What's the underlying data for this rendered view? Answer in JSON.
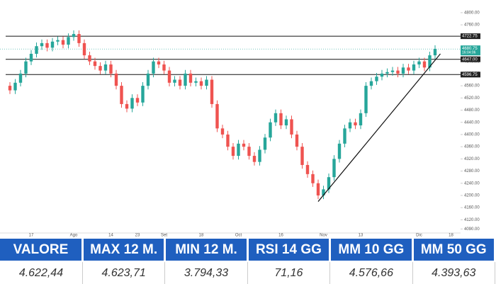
{
  "chart_data": {
    "type": "candlestick",
    "categories": [
      null,
      null,
      null,
      null,
      "17",
      null,
      null,
      null,
      null,
      null,
      null,
      null,
      "Ago",
      null,
      null,
      null,
      null,
      null,
      null,
      "14",
      null,
      null,
      null,
      null,
      "23",
      null,
      null,
      null,
      null,
      "Set",
      null,
      null,
      null,
      null,
      null,
      null,
      "18",
      null,
      null,
      null,
      null,
      null,
      null,
      "Oct",
      null,
      null,
      null,
      null,
      null,
      null,
      null,
      "16",
      null,
      null,
      null,
      null,
      null,
      null,
      null,
      "Nov",
      null,
      null,
      null,
      null,
      null,
      null,
      "13",
      null,
      null,
      null,
      null,
      null,
      null,
      null,
      null,
      null,
      null,
      "Dic",
      null,
      null,
      null,
      null,
      null,
      "18",
      null
    ],
    "opens": [
      4560,
      4545,
      4570,
      4600,
      4640,
      4665,
      4690,
      4700,
      4685,
      4705,
      4710,
      4695,
      4720,
      4730,
      4700,
      4660,
      4640,
      4625,
      4610,
      4630,
      4600,
      4560,
      4500,
      4485,
      4520,
      4505,
      4560,
      4600,
      4640,
      4630,
      4610,
      4570,
      4580,
      4560,
      4600,
      4570,
      4575,
      4560,
      4580,
      4500,
      4420,
      4400,
      4360,
      4330,
      4370,
      4360,
      4330,
      4310,
      4350,
      4390,
      4440,
      4470,
      4430,
      4450,
      4400,
      4360,
      4300,
      4270,
      4240,
      4200,
      4220,
      4260,
      4320,
      4370,
      4420,
      4440,
      4430,
      4470,
      4560,
      4575,
      4590,
      4600,
      4605,
      4610,
      4600,
      4620,
      4610,
      4630,
      4640,
      4620,
      4660,
      null,
      null,
      null,
      null
    ],
    "highs": [
      4572,
      4582,
      4612,
      4652,
      4677,
      4702,
      4712,
      4712,
      4717,
      4722,
      4722,
      4732,
      4742,
      4742,
      4712,
      4672,
      4652,
      4637,
      4642,
      4642,
      4612,
      4572,
      4512,
      4532,
      4532,
      4572,
      4612,
      4652,
      4652,
      4642,
      4622,
      4592,
      4592,
      4612,
      4612,
      4587,
      4587,
      4592,
      4592,
      4512,
      4432,
      4412,
      4372,
      4382,
      4382,
      4372,
      4342,
      4362,
      4402,
      4452,
      4482,
      4482,
      4462,
      4462,
      4412,
      4372,
      4312,
      4282,
      4252,
      4232,
      4272,
      4332,
      4382,
      4432,
      4452,
      4452,
      4482,
      4572,
      4587,
      4602,
      4612,
      4617,
      4622,
      4622,
      4632,
      4632,
      4642,
      4652,
      4652,
      4672,
      4693,
      null,
      null,
      null,
      null
    ],
    "lows": [
      4533,
      4533,
      4558,
      4588,
      4628,
      4653,
      4678,
      4673,
      4673,
      4693,
      4683,
      4683,
      4708,
      4688,
      4648,
      4628,
      4613,
      4598,
      4598,
      4588,
      4548,
      4488,
      4473,
      4473,
      4493,
      4493,
      4548,
      4588,
      4618,
      4598,
      4558,
      4558,
      4548,
      4548,
      4558,
      4558,
      4548,
      4548,
      4488,
      4408,
      4388,
      4348,
      4318,
      4318,
      4348,
      4318,
      4298,
      4298,
      4338,
      4378,
      4428,
      4418,
      4418,
      4388,
      4348,
      4288,
      4258,
      4228,
      4188,
      4188,
      4208,
      4248,
      4308,
      4358,
      4408,
      4418,
      4418,
      4458,
      4548,
      4563,
      4578,
      4588,
      4593,
      4588,
      4588,
      4598,
      4598,
      4618,
      4608,
      4608,
      4648,
      null,
      null,
      null,
      null
    ],
    "closes": [
      4545,
      4570,
      4600,
      4640,
      4665,
      4690,
      4700,
      4685,
      4705,
      4710,
      4695,
      4720,
      4730,
      4700,
      4660,
      4640,
      4625,
      4610,
      4630,
      4600,
      4560,
      4500,
      4485,
      4520,
      4505,
      4560,
      4600,
      4640,
      4630,
      4610,
      4570,
      4580,
      4560,
      4600,
      4570,
      4575,
      4560,
      4580,
      4500,
      4420,
      4400,
      4360,
      4330,
      4370,
      4360,
      4330,
      4310,
      4350,
      4390,
      4440,
      4470,
      4430,
      4450,
      4400,
      4360,
      4300,
      4270,
      4240,
      4200,
      4220,
      4260,
      4320,
      4370,
      4420,
      4440,
      4430,
      4470,
      4560,
      4575,
      4590,
      4600,
      4605,
      4610,
      4600,
      4620,
      4610,
      4630,
      4640,
      4620,
      4660,
      4681,
      null,
      null,
      null,
      null
    ],
    "up_color": "#26a69a",
    "down_color": "#ef5350",
    "ylim": [
      4079,
      4823
    ],
    "yticks": [
      {
        "value": 4800,
        "label": "4800.00"
      },
      {
        "value": 4760,
        "label": "4760.00"
      },
      {
        "value": 4720,
        "label": "4720.00"
      },
      {
        "value": 4680,
        "label": "4680.00"
      },
      {
        "value": 4640,
        "label": "4640.00"
      },
      {
        "value": 4600,
        "label": "4600.00"
      },
      {
        "value": 4560,
        "label": "4560.00"
      },
      {
        "value": 4520,
        "label": "4520.00"
      },
      {
        "value": 4480,
        "label": "4480.00"
      },
      {
        "value": 4440,
        "label": "4440.00"
      },
      {
        "value": 4400,
        "label": "4400.00"
      },
      {
        "value": 4360,
        "label": "4360.00"
      },
      {
        "value": 4320,
        "label": "4320.00"
      },
      {
        "value": 4280,
        "label": "4280.00"
      },
      {
        "value": 4240,
        "label": "4240.00"
      },
      {
        "value": 4200,
        "label": "4200.00"
      },
      {
        "value": 4160,
        "label": "4160.00"
      },
      {
        "value": 4120,
        "label": "4120.00"
      },
      {
        "value": 4090,
        "label": "4090.00"
      }
    ],
    "levels": [
      {
        "value": 4722.75,
        "label": "4722.75"
      },
      {
        "value": 4647,
        "label": "4647.00"
      },
      {
        "value": 4596.75,
        "label": "4596.75"
      }
    ],
    "last_price": {
      "value": 4680.75,
      "label": "4680.75"
    },
    "countdown": "16:04:06",
    "trendline": {
      "x": [
        58,
        81
      ],
      "y": [
        4180,
        4665
      ]
    }
  },
  "table": {
    "header": [
      "VALORE",
      "MAX 12 M.",
      "MIN 12 M.",
      "RSI 14 GG",
      "MM 10 GG",
      "MM 50 GG"
    ],
    "rows": [
      [
        "4.622,44",
        "4.623,71",
        "3.794,33",
        "71,16",
        "4.576,66",
        "4.393,63"
      ]
    ]
  }
}
